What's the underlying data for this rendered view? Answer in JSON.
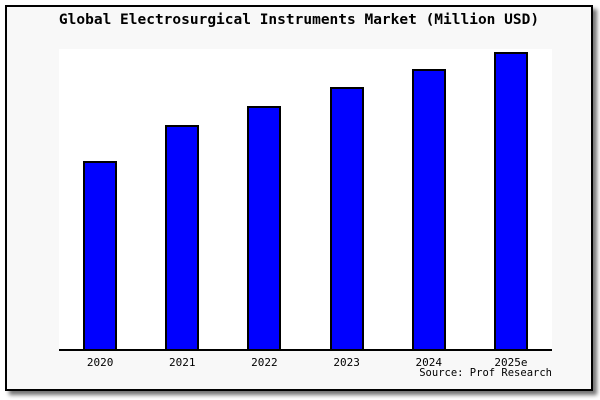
{
  "window": {
    "page_background": "#ffffff",
    "frame_background": "#f8f8f8",
    "frame_border_color": "#000000"
  },
  "chart_data": {
    "type": "bar",
    "title": "Global Electrosurgical Instruments Market (Million USD)",
    "categories": [
      "2020",
      "2021",
      "2022",
      "2023",
      "2024",
      "2025e"
    ],
    "values": [
      62.6,
      74.8,
      81.1,
      87.4,
      93.4,
      99.0
    ],
    "values_note": "relative heights estimated from pixels; no y-axis scale shown",
    "xlabel": "",
    "ylabel": "",
    "ylim": [
      0,
      100
    ],
    "grid": false,
    "legend": false,
    "plot_background": "#ffffff",
    "bar_color": "#0000ff",
    "bar_border_color": "#000000",
    "axis_color": "#000000",
    "source_note": "Source: Prof Research"
  }
}
